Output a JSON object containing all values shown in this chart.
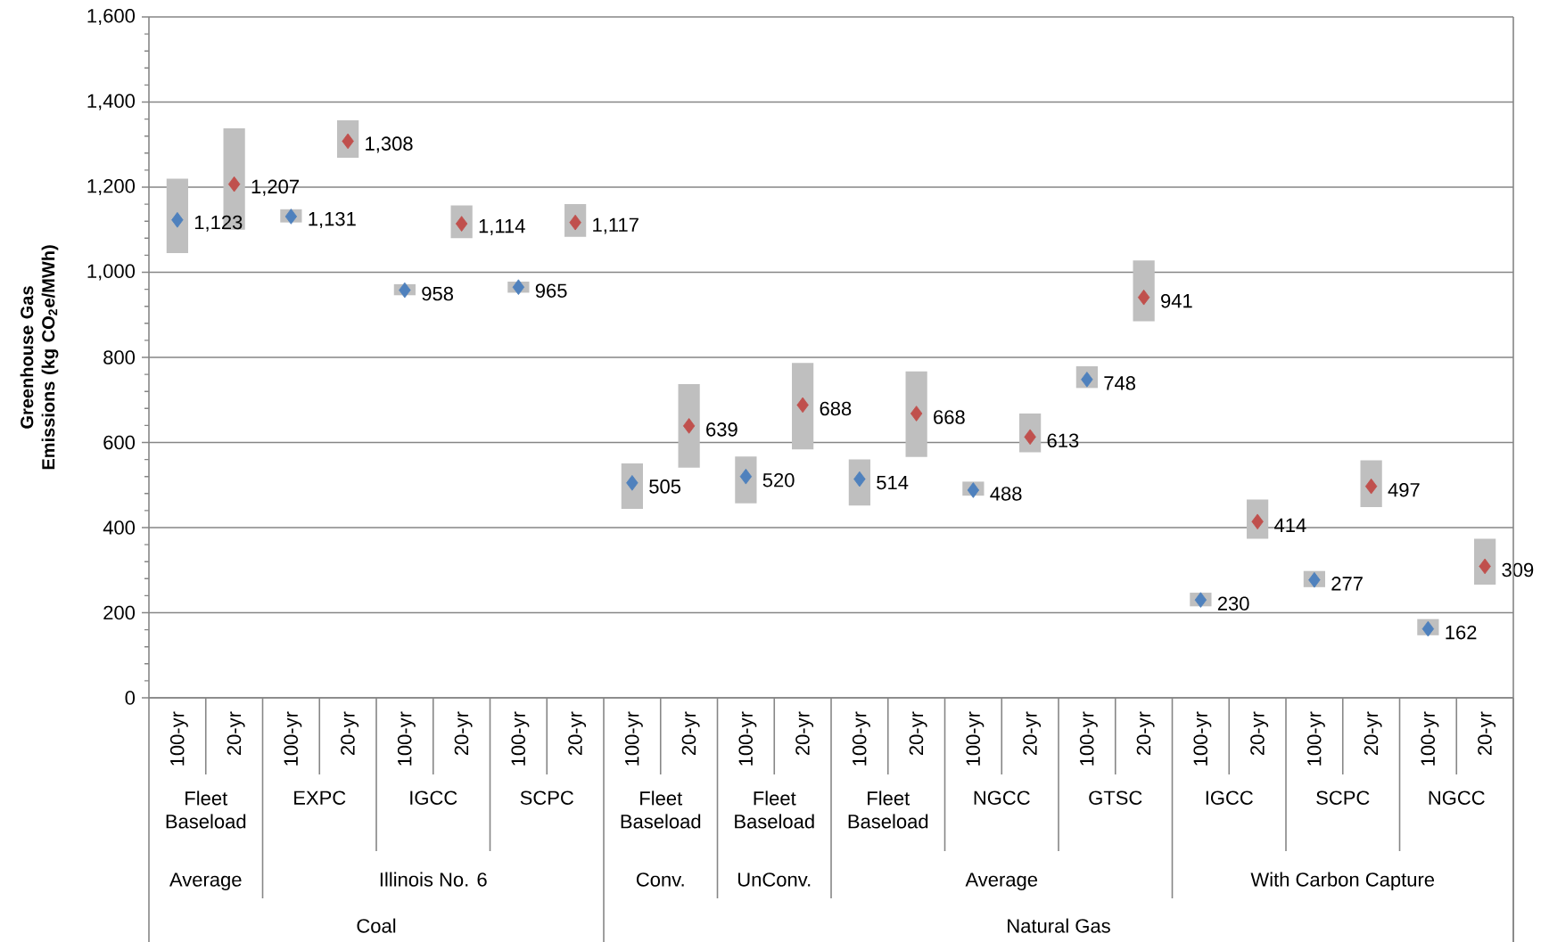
{
  "chart_data": {
    "type": "bar",
    "ylabel": "Greenhouse Gas Emissions (kg CO$_{2}$e/MWh)",
    "categories": [
      "100-yr",
      "20-yr",
      "100-yr",
      "20-yr",
      "100-yr",
      "20-yr",
      "100-yr",
      "20-yr",
      "100-yr",
      "20-yr",
      "100-yr",
      "20-yr",
      "100-yr",
      "20-yr",
      "100-yr",
      "20-yr",
      "100-yr",
      "20-yr",
      "100-yr",
      "20-yr",
      "100-yr",
      "20-yr",
      "100-yr",
      "20-yr"
    ],
    "series": [
      {
        "color": "#bfbfbf",
        "base": [
          1045,
          1100,
          1117,
          1269,
          946,
          1080,
          952,
          1083,
          444,
          541,
          457,
          584,
          452,
          566,
          475,
          577,
          728,
          885,
          215,
          374,
          260,
          448,
          147,
          266
        ],
        "values": [
          175,
          238,
          31,
          88,
          26,
          77,
          26,
          77,
          107,
          196,
          110,
          203,
          108,
          201,
          33,
          91,
          51,
          143,
          32,
          92,
          38,
          110,
          38,
          108
        ]
      },
      {
        "type": "scatter",
        "color": "#4f81bd",
        "values": [
          1123,
          null,
          1131,
          null,
          958,
          null,
          965,
          null,
          505,
          null,
          520,
          null,
          514,
          null,
          488,
          null,
          748,
          null,
          230,
          null,
          277,
          null,
          162,
          null
        ],
        "value_labels": [
          "1,123",
          null,
          "1,131",
          null,
          "958",
          null,
          "965",
          null,
          "505",
          null,
          "520",
          null,
          "514",
          null,
          "488",
          null,
          "748",
          null,
          "230",
          null,
          "277",
          null,
          "162",
          null
        ]
      },
      {
        "type": "scatter",
        "color": "#c0504d",
        "values": [
          null,
          1207,
          null,
          1308,
          null,
          1114,
          null,
          1117,
          null,
          639,
          null,
          688,
          null,
          668,
          null,
          613,
          null,
          941,
          null,
          414,
          null,
          497,
          null,
          309
        ],
        "value_labels": [
          null,
          "1,207",
          null,
          "1,308",
          null,
          "1,114",
          null,
          "1,117",
          null,
          "639",
          null,
          "688",
          null,
          "668",
          null,
          "613",
          null,
          "941",
          null,
          "414",
          null,
          "497",
          null,
          "309"
        ]
      }
    ],
    "ylim": [
      0,
      1600
    ],
    "yticks": [
      0,
      200,
      400,
      600,
      800,
      {
        "value": 1000,
        "label": "1,000"
      },
      {
        "value": 1200,
        "label": "1,200"
      },
      {
        "value": 1400,
        "label": "1,400"
      },
      {
        "value": 1600,
        "label": "1,600"
      }
    ],
    "grid": "y",
    "marker": "diamond",
    "annotations": [
      "Fleet Baseload",
      "EXPC",
      "IGCC",
      "SCPC",
      "Fleet Baseload",
      "Fleet Baseload",
      "Fleet Baseload",
      "NGCC",
      "GTSC",
      "IGCC",
      "SCPC",
      "NGCC",
      "Average",
      "Illinois No. 6",
      "Conv.",
      "UnConv.",
      "Average",
      "With Carbon Capture",
      "Coal",
      "Natural Gas"
    ]
  }
}
